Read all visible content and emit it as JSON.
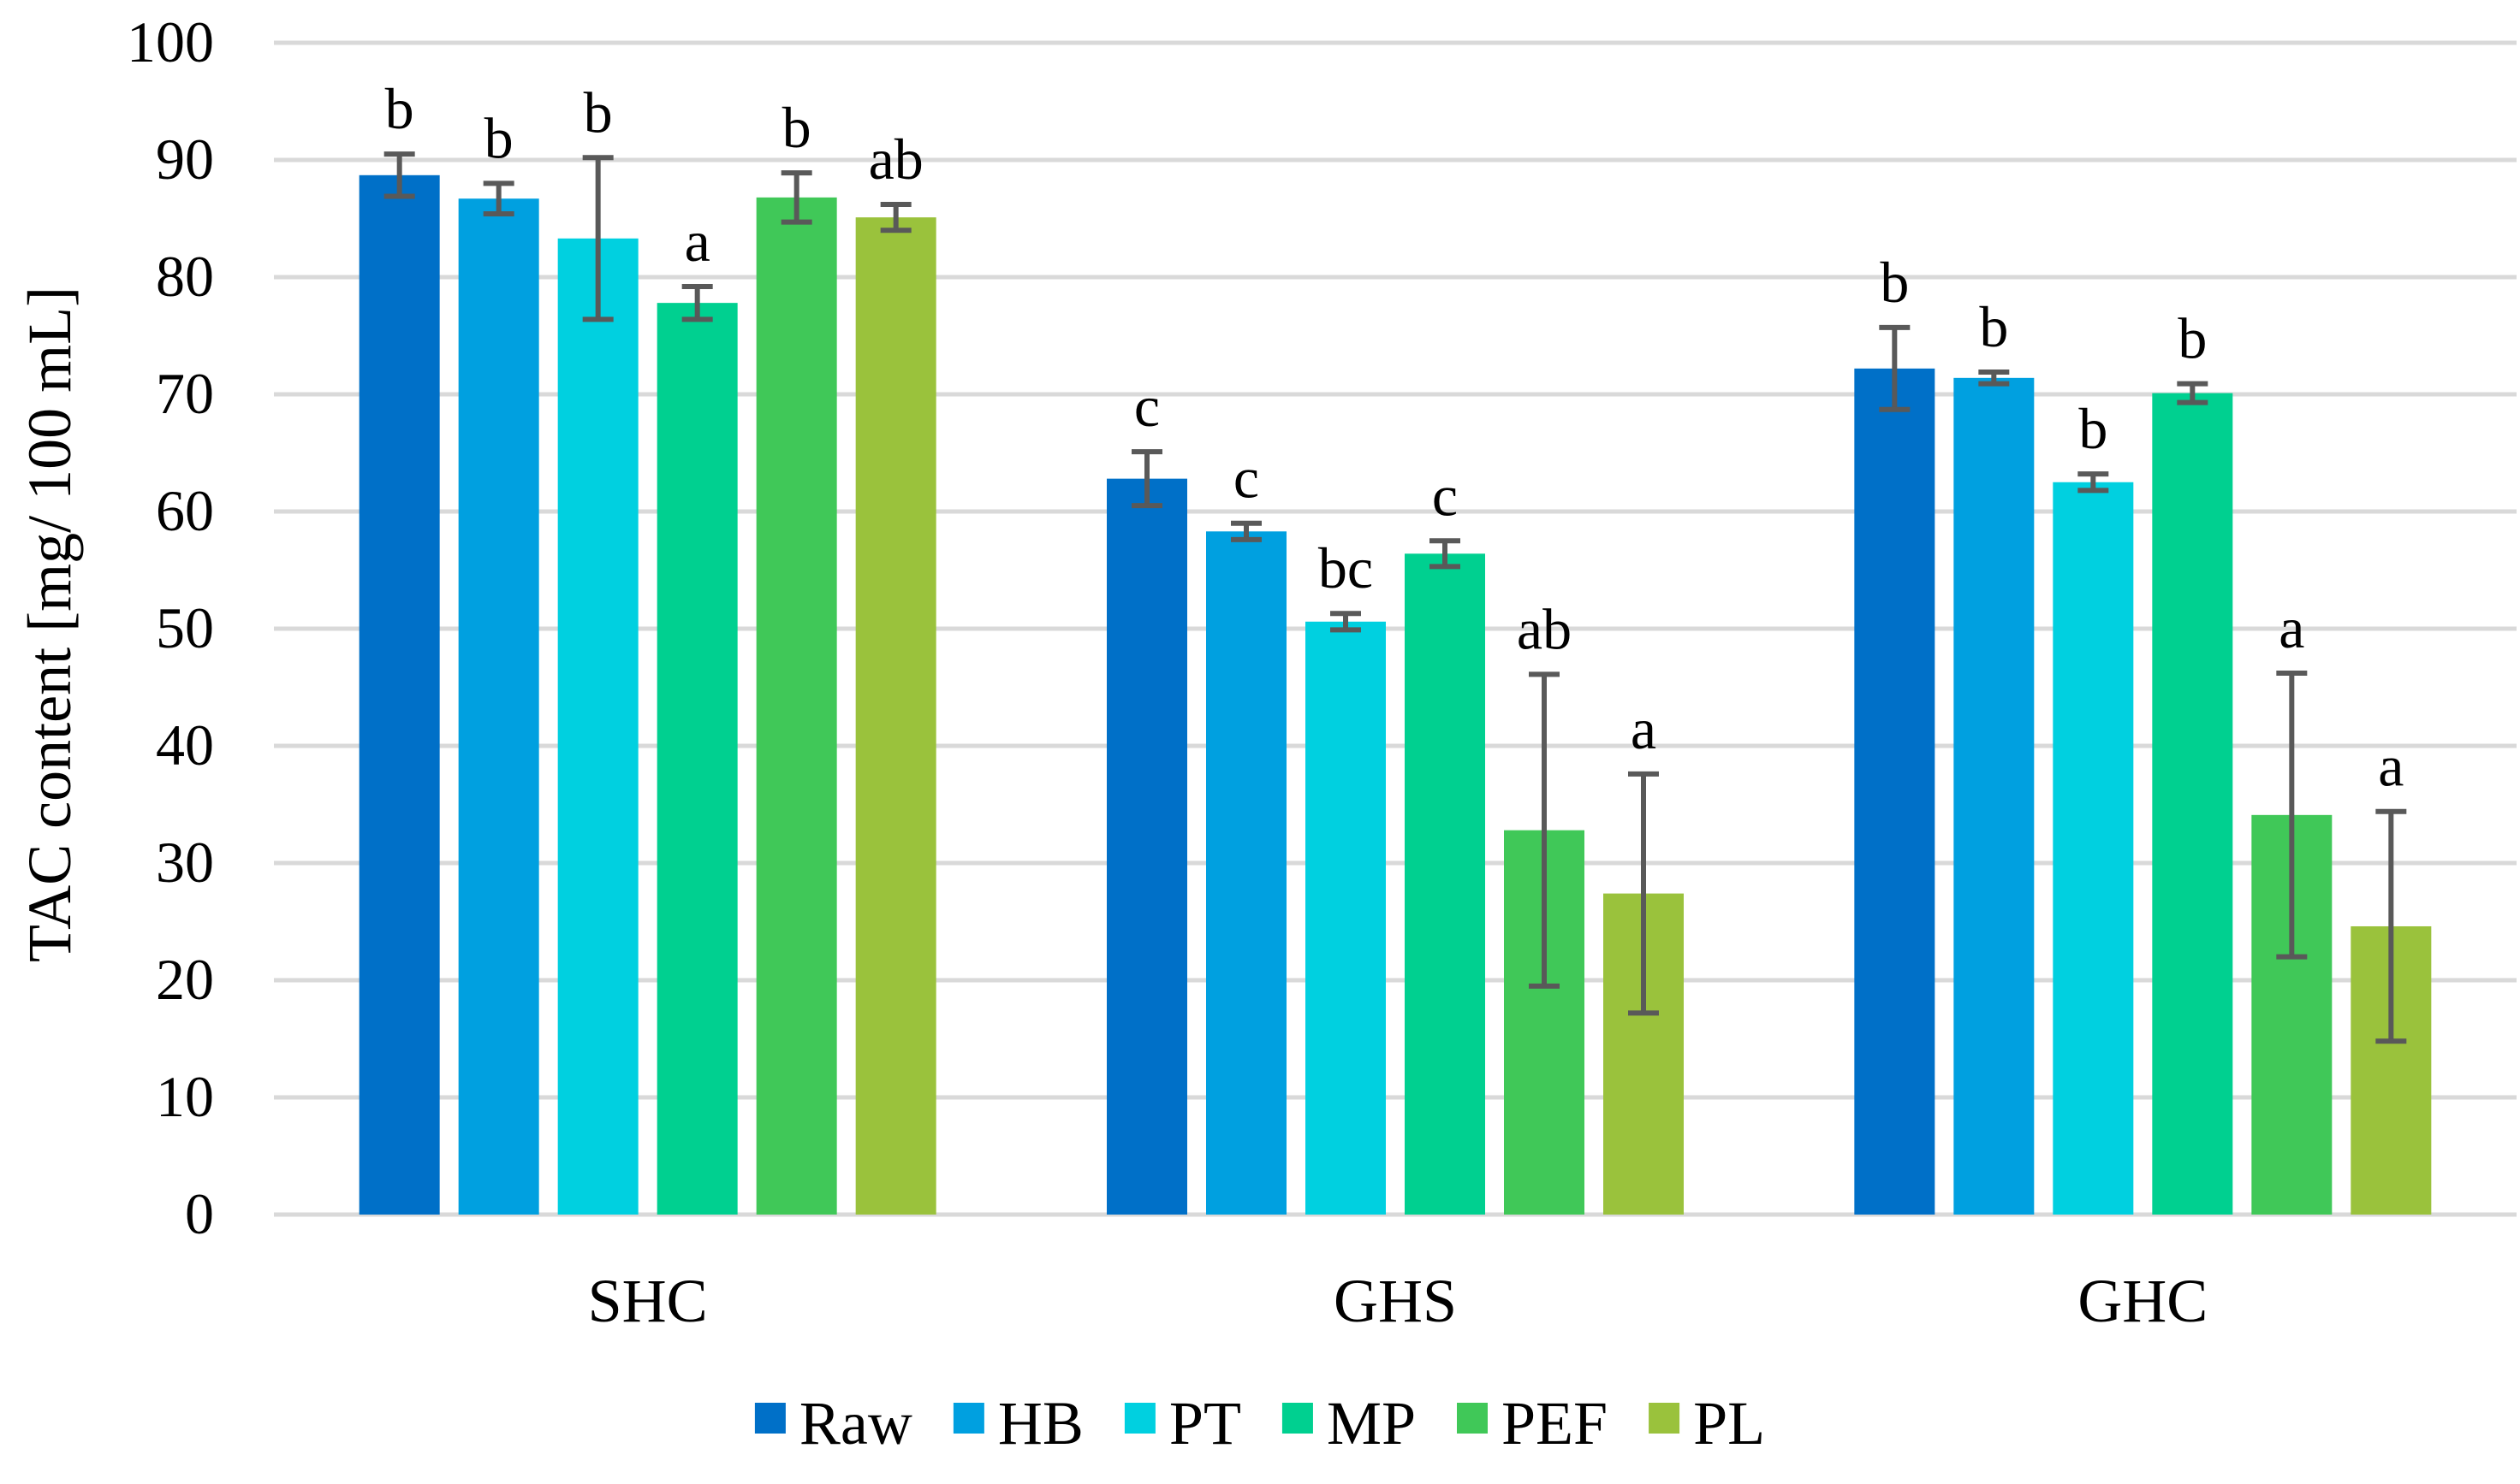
{
  "chart_data": {
    "type": "bar",
    "title": "",
    "xlabel": "",
    "ylabel": "TAC content [mg/ 100 mL]",
    "ylim": [
      0,
      100
    ],
    "yticks": [
      0,
      10,
      20,
      30,
      40,
      50,
      60,
      70,
      80,
      90,
      100
    ],
    "grid": true,
    "legend_position": "bottom",
    "categories": [
      "SHC",
      "GHS",
      "GHC"
    ],
    "series": [
      {
        "name": "Raw",
        "color": "#0070c8",
        "values": [
          88.7,
          62.8,
          72.2
        ],
        "errors": [
          1.8,
          2.3,
          3.5
        ],
        "labels": [
          "b",
          "c",
          "b"
        ]
      },
      {
        "name": "HB",
        "color": "#00a0e0",
        "values": [
          86.7,
          58.3,
          71.4
        ],
        "errors": [
          1.3,
          0.7,
          0.5
        ],
        "labels": [
          "b",
          "c",
          "b"
        ]
      },
      {
        "name": "PT",
        "color": "#00d0e0",
        "values": [
          83.3,
          50.6,
          62.5
        ],
        "errors": [
          6.9,
          0.7,
          0.7
        ],
        "labels": [
          "b",
          "bc",
          "b"
        ]
      },
      {
        "name": "MP",
        "color": "#00d090",
        "values": [
          77.8,
          56.4,
          70.1
        ],
        "errors": [
          1.4,
          1.1,
          0.8
        ],
        "labels": [
          "a",
          "c",
          "b"
        ]
      },
      {
        "name": "PEF",
        "color": "#40c858",
        "values": [
          86.8,
          32.8,
          34.1
        ],
        "errors": [
          2.1,
          13.3,
          12.1
        ],
        "labels": [
          "b",
          "ab",
          "a"
        ]
      },
      {
        "name": "PL",
        "color": "#9ac23c",
        "values": [
          85.1,
          27.4,
          24.6
        ],
        "errors": [
          1.1,
          10.2,
          9.8
        ],
        "labels": [
          "ab",
          "a",
          "a"
        ]
      }
    ]
  }
}
